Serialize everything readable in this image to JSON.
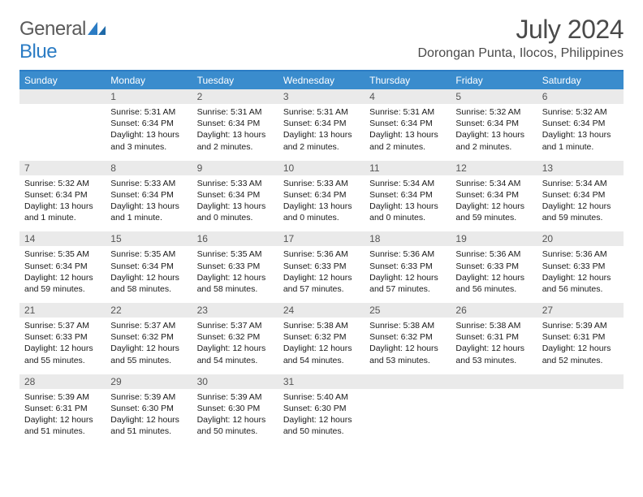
{
  "logo": {
    "general": "General",
    "blue": "Blue"
  },
  "header": {
    "title": "July 2024",
    "subtitle": "Dorongan Punta, Ilocos, Philippines"
  },
  "colors": {
    "header_bar": "#3a8ccd",
    "rule": "#2b7cc4",
    "daynum_bg": "#eaeaea"
  },
  "day_labels": [
    "Sunday",
    "Monday",
    "Tuesday",
    "Wednesday",
    "Thursday",
    "Friday",
    "Saturday"
  ],
  "weeks": [
    [
      {
        "n": "",
        "l1": "",
        "l2": "",
        "l3": "",
        "l4": ""
      },
      {
        "n": "1",
        "l1": "Sunrise: 5:31 AM",
        "l2": "Sunset: 6:34 PM",
        "l3": "Daylight: 13 hours",
        "l4": "and 3 minutes."
      },
      {
        "n": "2",
        "l1": "Sunrise: 5:31 AM",
        "l2": "Sunset: 6:34 PM",
        "l3": "Daylight: 13 hours",
        "l4": "and 2 minutes."
      },
      {
        "n": "3",
        "l1": "Sunrise: 5:31 AM",
        "l2": "Sunset: 6:34 PM",
        "l3": "Daylight: 13 hours",
        "l4": "and 2 minutes."
      },
      {
        "n": "4",
        "l1": "Sunrise: 5:31 AM",
        "l2": "Sunset: 6:34 PM",
        "l3": "Daylight: 13 hours",
        "l4": "and 2 minutes."
      },
      {
        "n": "5",
        "l1": "Sunrise: 5:32 AM",
        "l2": "Sunset: 6:34 PM",
        "l3": "Daylight: 13 hours",
        "l4": "and 2 minutes."
      },
      {
        "n": "6",
        "l1": "Sunrise: 5:32 AM",
        "l2": "Sunset: 6:34 PM",
        "l3": "Daylight: 13 hours",
        "l4": "and 1 minute."
      }
    ],
    [
      {
        "n": "7",
        "l1": "Sunrise: 5:32 AM",
        "l2": "Sunset: 6:34 PM",
        "l3": "Daylight: 13 hours",
        "l4": "and 1 minute."
      },
      {
        "n": "8",
        "l1": "Sunrise: 5:33 AM",
        "l2": "Sunset: 6:34 PM",
        "l3": "Daylight: 13 hours",
        "l4": "and 1 minute."
      },
      {
        "n": "9",
        "l1": "Sunrise: 5:33 AM",
        "l2": "Sunset: 6:34 PM",
        "l3": "Daylight: 13 hours",
        "l4": "and 0 minutes."
      },
      {
        "n": "10",
        "l1": "Sunrise: 5:33 AM",
        "l2": "Sunset: 6:34 PM",
        "l3": "Daylight: 13 hours",
        "l4": "and 0 minutes."
      },
      {
        "n": "11",
        "l1": "Sunrise: 5:34 AM",
        "l2": "Sunset: 6:34 PM",
        "l3": "Daylight: 13 hours",
        "l4": "and 0 minutes."
      },
      {
        "n": "12",
        "l1": "Sunrise: 5:34 AM",
        "l2": "Sunset: 6:34 PM",
        "l3": "Daylight: 12 hours",
        "l4": "and 59 minutes."
      },
      {
        "n": "13",
        "l1": "Sunrise: 5:34 AM",
        "l2": "Sunset: 6:34 PM",
        "l3": "Daylight: 12 hours",
        "l4": "and 59 minutes."
      }
    ],
    [
      {
        "n": "14",
        "l1": "Sunrise: 5:35 AM",
        "l2": "Sunset: 6:34 PM",
        "l3": "Daylight: 12 hours",
        "l4": "and 59 minutes."
      },
      {
        "n": "15",
        "l1": "Sunrise: 5:35 AM",
        "l2": "Sunset: 6:34 PM",
        "l3": "Daylight: 12 hours",
        "l4": "and 58 minutes."
      },
      {
        "n": "16",
        "l1": "Sunrise: 5:35 AM",
        "l2": "Sunset: 6:33 PM",
        "l3": "Daylight: 12 hours",
        "l4": "and 58 minutes."
      },
      {
        "n": "17",
        "l1": "Sunrise: 5:36 AM",
        "l2": "Sunset: 6:33 PM",
        "l3": "Daylight: 12 hours",
        "l4": "and 57 minutes."
      },
      {
        "n": "18",
        "l1": "Sunrise: 5:36 AM",
        "l2": "Sunset: 6:33 PM",
        "l3": "Daylight: 12 hours",
        "l4": "and 57 minutes."
      },
      {
        "n": "19",
        "l1": "Sunrise: 5:36 AM",
        "l2": "Sunset: 6:33 PM",
        "l3": "Daylight: 12 hours",
        "l4": "and 56 minutes."
      },
      {
        "n": "20",
        "l1": "Sunrise: 5:36 AM",
        "l2": "Sunset: 6:33 PM",
        "l3": "Daylight: 12 hours",
        "l4": "and 56 minutes."
      }
    ],
    [
      {
        "n": "21",
        "l1": "Sunrise: 5:37 AM",
        "l2": "Sunset: 6:33 PM",
        "l3": "Daylight: 12 hours",
        "l4": "and 55 minutes."
      },
      {
        "n": "22",
        "l1": "Sunrise: 5:37 AM",
        "l2": "Sunset: 6:32 PM",
        "l3": "Daylight: 12 hours",
        "l4": "and 55 minutes."
      },
      {
        "n": "23",
        "l1": "Sunrise: 5:37 AM",
        "l2": "Sunset: 6:32 PM",
        "l3": "Daylight: 12 hours",
        "l4": "and 54 minutes."
      },
      {
        "n": "24",
        "l1": "Sunrise: 5:38 AM",
        "l2": "Sunset: 6:32 PM",
        "l3": "Daylight: 12 hours",
        "l4": "and 54 minutes."
      },
      {
        "n": "25",
        "l1": "Sunrise: 5:38 AM",
        "l2": "Sunset: 6:32 PM",
        "l3": "Daylight: 12 hours",
        "l4": "and 53 minutes."
      },
      {
        "n": "26",
        "l1": "Sunrise: 5:38 AM",
        "l2": "Sunset: 6:31 PM",
        "l3": "Daylight: 12 hours",
        "l4": "and 53 minutes."
      },
      {
        "n": "27",
        "l1": "Sunrise: 5:39 AM",
        "l2": "Sunset: 6:31 PM",
        "l3": "Daylight: 12 hours",
        "l4": "and 52 minutes."
      }
    ],
    [
      {
        "n": "28",
        "l1": "Sunrise: 5:39 AM",
        "l2": "Sunset: 6:31 PM",
        "l3": "Daylight: 12 hours",
        "l4": "and 51 minutes."
      },
      {
        "n": "29",
        "l1": "Sunrise: 5:39 AM",
        "l2": "Sunset: 6:30 PM",
        "l3": "Daylight: 12 hours",
        "l4": "and 51 minutes."
      },
      {
        "n": "30",
        "l1": "Sunrise: 5:39 AM",
        "l2": "Sunset: 6:30 PM",
        "l3": "Daylight: 12 hours",
        "l4": "and 50 minutes."
      },
      {
        "n": "31",
        "l1": "Sunrise: 5:40 AM",
        "l2": "Sunset: 6:30 PM",
        "l3": "Daylight: 12 hours",
        "l4": "and 50 minutes."
      },
      {
        "n": "",
        "l1": "",
        "l2": "",
        "l3": "",
        "l4": ""
      },
      {
        "n": "",
        "l1": "",
        "l2": "",
        "l3": "",
        "l4": ""
      },
      {
        "n": "",
        "l1": "",
        "l2": "",
        "l3": "",
        "l4": ""
      }
    ]
  ]
}
